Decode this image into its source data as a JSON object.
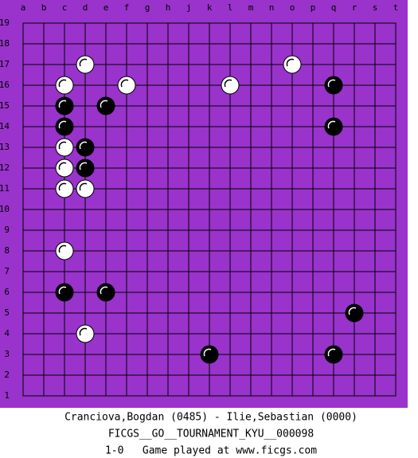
{
  "board": {
    "columns": [
      "a",
      "b",
      "c",
      "d",
      "e",
      "f",
      "g",
      "h",
      "j",
      "k",
      "l",
      "m",
      "n",
      "o",
      "p",
      "q",
      "r",
      "s",
      "t"
    ],
    "rows": [
      19,
      18,
      17,
      16,
      15,
      14,
      13,
      12,
      11,
      10,
      9,
      8,
      7,
      6,
      5,
      4,
      3,
      2,
      1
    ],
    "stones": [
      {
        "color": "white",
        "point": "d17"
      },
      {
        "color": "white",
        "point": "o17"
      },
      {
        "color": "white",
        "point": "c16"
      },
      {
        "color": "white",
        "point": "f16"
      },
      {
        "color": "white",
        "point": "l16"
      },
      {
        "color": "black",
        "point": "q16"
      },
      {
        "color": "black",
        "point": "c15"
      },
      {
        "color": "black",
        "point": "e15"
      },
      {
        "color": "black",
        "point": "c14"
      },
      {
        "color": "black",
        "point": "q14"
      },
      {
        "color": "white",
        "point": "c13"
      },
      {
        "color": "black",
        "point": "d13"
      },
      {
        "color": "white",
        "point": "c12"
      },
      {
        "color": "black",
        "point": "d12"
      },
      {
        "color": "white",
        "point": "c11"
      },
      {
        "color": "white",
        "point": "d11"
      },
      {
        "color": "white",
        "point": "c8"
      },
      {
        "color": "black",
        "point": "c6"
      },
      {
        "color": "black",
        "point": "e6"
      },
      {
        "color": "black",
        "point": "r5"
      },
      {
        "color": "white",
        "point": "d4"
      },
      {
        "color": "black",
        "point": "k3"
      },
      {
        "color": "black",
        "point": "q3"
      }
    ]
  },
  "footer": {
    "players": "Cranciova,Bogdan (0485) - Ilie,Sebastian (0000)",
    "tournament": "FICGS__GO__TOURNAMENT_KYU__000098",
    "result": "1-0   Game played at www.ficgs.com"
  }
}
